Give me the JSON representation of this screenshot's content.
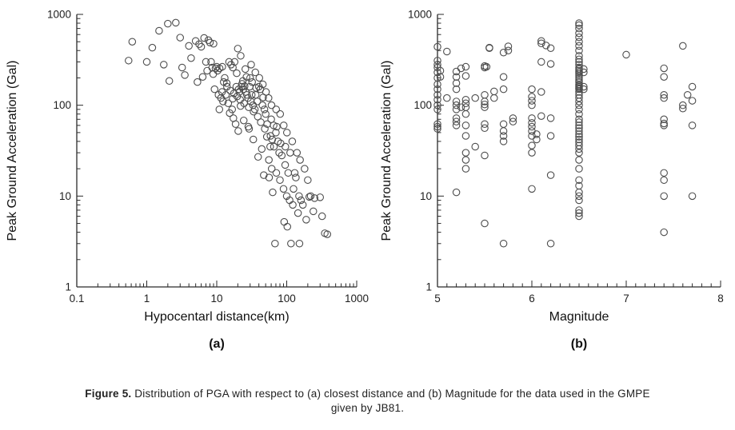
{
  "style": {
    "background": "#ffffff",
    "axis_color": "#2b2b2b",
    "point_color": "#4d4d4d"
  },
  "figure": {
    "caption_label": "Figure 5.",
    "caption_body": " Distribution of PGA with respect to (a) closest distance and (b) Magnitude for the data used in the GMPE given by JB81."
  },
  "chart_data": [
    {
      "type": "scatter",
      "name": "pga-vs-hypocentral-distance",
      "title": "",
      "xlabel": "Hypocentarl distance(km)",
      "ylabel": "Peak Ground Acceleration (Gal)",
      "sublabel": "(a)",
      "xscale": "log",
      "yscale": "log",
      "xlim": [
        0.1,
        1000
      ],
      "ylim": [
        1,
        1000
      ],
      "xticks": [
        0.1,
        1,
        10,
        100,
        1000
      ],
      "yticks": [
        1,
        10,
        100,
        1000
      ],
      "grid": false,
      "legend": "none",
      "marker": "open-circle",
      "points": [
        [
          0.55,
          310
        ],
        [
          0.62,
          500
        ],
        [
          1.0,
          300
        ],
        [
          1.2,
          430
        ],
        [
          1.5,
          660
        ],
        [
          1.75,
          280
        ],
        [
          2.0,
          790
        ],
        [
          2.1,
          185
        ],
        [
          2.6,
          810
        ],
        [
          3.0,
          555
        ],
        [
          3.2,
          260
        ],
        [
          3.5,
          215
        ],
        [
          4.0,
          450
        ],
        [
          4.3,
          330
        ],
        [
          5.0,
          510
        ],
        [
          5.3,
          180
        ],
        [
          5.6,
          470
        ],
        [
          6.0,
          440
        ],
        [
          6.3,
          205
        ],
        [
          6.6,
          550
        ],
        [
          7.0,
          300
        ],
        [
          7.3,
          240
        ],
        [
          7.6,
          520
        ],
        [
          8.0,
          490
        ],
        [
          8.3,
          300
        ],
        [
          8.6,
          260
        ],
        [
          8.9,
          220
        ],
        [
          9.0,
          475
        ],
        [
          9.3,
          150
        ],
        [
          9.6,
          255
        ],
        [
          10.0,
          265
        ],
        [
          10.3,
          240
        ],
        [
          10.6,
          130
        ],
        [
          10.9,
          90
        ],
        [
          11.0,
          255
        ],
        [
          11.5,
          120
        ],
        [
          11.9,
          140
        ],
        [
          12.0,
          265
        ],
        [
          12.3,
          110
        ],
        [
          12.6,
          180
        ],
        [
          13.0,
          200
        ],
        [
          13.5,
          130
        ],
        [
          13.9,
          175
        ],
        [
          14.0,
          160
        ],
        [
          14.6,
          105
        ],
        [
          15.0,
          300
        ],
        [
          15.3,
          82
        ],
        [
          15.6,
          145
        ],
        [
          16.0,
          280
        ],
        [
          16.6,
          90
        ],
        [
          16.9,
          118
        ],
        [
          17.0,
          260
        ],
        [
          17.3,
          72
        ],
        [
          17.6,
          135
        ],
        [
          18.0,
          300
        ],
        [
          18.6,
          62
        ],
        [
          19.0,
          160
        ],
        [
          19.3,
          225
        ],
        [
          19.6,
          125
        ],
        [
          20.0,
          420
        ],
        [
          20.3,
          52
        ],
        [
          20.6,
          150
        ],
        [
          21.0,
          140
        ],
        [
          21.6,
          115
        ],
        [
          21.9,
          98
        ],
        [
          22.0,
          350
        ],
        [
          22.6,
          160
        ],
        [
          23.0,
          172
        ],
        [
          23.6,
          185
        ],
        [
          24.0,
          150
        ],
        [
          24.3,
          68
        ],
        [
          24.6,
          105
        ],
        [
          25.0,
          162
        ],
        [
          25.6,
          250
        ],
        [
          26.0,
          140
        ],
        [
          26.6,
          205
        ],
        [
          27.0,
          130
        ],
        [
          28.0,
          120
        ],
        [
          28.3,
          58
        ],
        [
          28.6,
          95
        ],
        [
          29.0,
          55
        ],
        [
          29.6,
          160
        ],
        [
          30.0,
          200
        ],
        [
          30.6,
          110
        ],
        [
          31.0,
          280
        ],
        [
          31.6,
          130
        ],
        [
          32.0,
          180
        ],
        [
          33.0,
          100
        ],
        [
          33.3,
          42
        ],
        [
          33.6,
          85
        ],
        [
          35.0,
          90
        ],
        [
          35.6,
          230
        ],
        [
          36.0,
          130
        ],
        [
          36.6,
          155
        ],
        [
          38.0,
          110
        ],
        [
          38.6,
          75
        ],
        [
          39.0,
          27
        ],
        [
          40.0,
          160
        ],
        [
          40.6,
          200
        ],
        [
          42.0,
          150
        ],
        [
          42.6,
          65
        ],
        [
          44.0,
          33
        ],
        [
          45.0,
          100
        ],
        [
          45.6,
          170
        ],
        [
          46.0,
          122
        ],
        [
          47.0,
          17
        ],
        [
          48.0,
          90
        ],
        [
          48.6,
          55
        ],
        [
          50.0,
          80
        ],
        [
          50.6,
          140
        ],
        [
          52.0,
          45
        ],
        [
          52.6,
          62
        ],
        [
          55.0,
          120
        ],
        [
          55.6,
          25
        ],
        [
          56.0,
          16
        ],
        [
          58.0,
          35
        ],
        [
          58.6,
          46
        ],
        [
          60.0,
          70
        ],
        [
          60.6,
          100
        ],
        [
          61.0,
          20
        ],
        [
          62.0,
          42
        ],
        [
          63.0,
          11
        ],
        [
          65.0,
          60
        ],
        [
          65.6,
          35
        ],
        [
          68.0,
          3.0
        ],
        [
          70.0,
          50
        ],
        [
          70.6,
          90
        ],
        [
          71.0,
          18
        ],
        [
          72.0,
          58
        ],
        [
          75.0,
          40
        ],
        [
          78.0,
          30
        ],
        [
          80.0,
          15
        ],
        [
          80.6,
          80
        ],
        [
          82.0,
          38
        ],
        [
          85.0,
          28
        ],
        [
          90.0,
          12
        ],
        [
          90.6,
          60
        ],
        [
          92.0,
          5.2
        ],
        [
          95.0,
          22
        ],
        [
          95.6,
          35
        ],
        [
          100.0,
          10
        ],
        [
          100.6,
          50
        ],
        [
          102.0,
          4.6
        ],
        [
          105.0,
          18
        ],
        [
          110.0,
          9.0
        ],
        [
          112.0,
          30
        ],
        [
          115.0,
          3.0
        ],
        [
          120.0,
          40
        ],
        [
          122.0,
          8.0
        ],
        [
          125.0,
          12
        ],
        [
          130.0,
          18
        ],
        [
          135.0,
          16
        ],
        [
          140.0,
          30
        ],
        [
          145.0,
          6.5
        ],
        [
          150.0,
          10
        ],
        [
          152.0,
          3.0
        ],
        [
          155.0,
          25
        ],
        [
          160.0,
          9.0
        ],
        [
          170.0,
          8.0
        ],
        [
          180.0,
          20
        ],
        [
          190.0,
          5.5
        ],
        [
          200.0,
          15
        ],
        [
          210.0,
          9.8
        ],
        [
          220.0,
          10
        ],
        [
          240.0,
          6.8
        ],
        [
          250.0,
          9.5
        ],
        [
          300.0,
          9.7
        ],
        [
          320.0,
          6.0
        ],
        [
          350.0,
          3.9
        ],
        [
          380.0,
          3.8
        ]
      ]
    },
    {
      "type": "scatter",
      "name": "pga-vs-magnitude",
      "title": "",
      "xlabel": "Magnitude",
      "ylabel": "Peak Ground Acceleration (Gal)",
      "sublabel": "(b)",
      "xscale": "linear",
      "yscale": "log",
      "xlim": [
        5,
        8
      ],
      "ylim": [
        1,
        1000
      ],
      "xticks": [
        5,
        6,
        7,
        8
      ],
      "yticks": [
        1,
        10,
        100,
        1000
      ],
      "xminor": 0.1,
      "grid": false,
      "legend": "none",
      "marker": "open-circle",
      "points": [
        [
          5.0,
          55
        ],
        [
          5.0,
          58
        ],
        [
          5.0,
          62
        ],
        [
          5.0,
          90
        ],
        [
          5.0,
          100
        ],
        [
          5.0,
          115
        ],
        [
          5.0,
          130
        ],
        [
          5.0,
          150
        ],
        [
          5.0,
          170
        ],
        [
          5.0,
          200
        ],
        [
          5.0,
          230
        ],
        [
          5.0,
          260
        ],
        [
          5.0,
          280
        ],
        [
          5.0,
          310
        ],
        [
          5.0,
          440
        ],
        [
          5.03,
          240
        ],
        [
          5.03,
          205
        ],
        [
          5.1,
          120
        ],
        [
          5.1,
          390
        ],
        [
          5.2,
          11
        ],
        [
          5.2,
          60
        ],
        [
          5.2,
          66
        ],
        [
          5.2,
          72
        ],
        [
          5.2,
          90
        ],
        [
          5.2,
          100
        ],
        [
          5.2,
          110
        ],
        [
          5.2,
          150
        ],
        [
          5.2,
          175
        ],
        [
          5.2,
          205
        ],
        [
          5.2,
          235
        ],
        [
          5.25,
          255
        ],
        [
          5.25,
          95
        ],
        [
          5.3,
          20
        ],
        [
          5.3,
          25
        ],
        [
          5.3,
          30
        ],
        [
          5.3,
          46
        ],
        [
          5.3,
          60
        ],
        [
          5.3,
          80
        ],
        [
          5.3,
          95
        ],
        [
          5.3,
          105
        ],
        [
          5.3,
          115
        ],
        [
          5.3,
          210
        ],
        [
          5.3,
          265
        ],
        [
          5.4,
          35
        ],
        [
          5.4,
          120
        ],
        [
          5.5,
          5
        ],
        [
          5.5,
          28
        ],
        [
          5.5,
          56
        ],
        [
          5.5,
          62
        ],
        [
          5.5,
          95
        ],
        [
          5.5,
          102
        ],
        [
          5.5,
          110
        ],
        [
          5.5,
          130
        ],
        [
          5.5,
          260
        ],
        [
          5.5,
          270
        ],
        [
          5.52,
          265
        ],
        [
          5.55,
          425
        ],
        [
          5.55,
          430
        ],
        [
          5.6,
          120
        ],
        [
          5.6,
          142
        ],
        [
          5.7,
          3
        ],
        [
          5.7,
          40
        ],
        [
          5.7,
          46
        ],
        [
          5.7,
          52
        ],
        [
          5.7,
          62
        ],
        [
          5.7,
          150
        ],
        [
          5.7,
          205
        ],
        [
          5.7,
          380
        ],
        [
          5.75,
          400
        ],
        [
          5.75,
          445
        ],
        [
          5.8,
          66
        ],
        [
          5.8,
          72
        ],
        [
          6.0,
          12
        ],
        [
          6.0,
          30
        ],
        [
          6.0,
          36
        ],
        [
          6.0,
          46
        ],
        [
          6.0,
          52
        ],
        [
          6.0,
          58
        ],
        [
          6.0,
          64
        ],
        [
          6.0,
          72
        ],
        [
          6.0,
          100
        ],
        [
          6.0,
          112
        ],
        [
          6.0,
          124
        ],
        [
          6.0,
          150
        ],
        [
          6.05,
          42
        ],
        [
          6.05,
          48
        ],
        [
          6.1,
          76
        ],
        [
          6.1,
          140
        ],
        [
          6.1,
          300
        ],
        [
          6.1,
          480
        ],
        [
          6.1,
          510
        ],
        [
          6.15,
          455
        ],
        [
          6.2,
          3
        ],
        [
          6.2,
          17
        ],
        [
          6.2,
          46
        ],
        [
          6.2,
          72
        ],
        [
          6.2,
          285
        ],
        [
          6.2,
          425
        ],
        [
          6.5,
          6
        ],
        [
          6.5,
          6.5
        ],
        [
          6.5,
          7
        ],
        [
          6.5,
          9
        ],
        [
          6.5,
          10
        ],
        [
          6.5,
          11
        ],
        [
          6.5,
          13
        ],
        [
          6.5,
          15
        ],
        [
          6.5,
          20
        ],
        [
          6.5,
          25
        ],
        [
          6.5,
          30
        ],
        [
          6.5,
          33
        ],
        [
          6.5,
          36
        ],
        [
          6.5,
          39
        ],
        [
          6.5,
          42
        ],
        [
          6.5,
          45
        ],
        [
          6.5,
          48
        ],
        [
          6.5,
          52
        ],
        [
          6.5,
          56
        ],
        [
          6.5,
          60
        ],
        [
          6.5,
          65
        ],
        [
          6.5,
          70
        ],
        [
          6.5,
          80
        ],
        [
          6.5,
          90
        ],
        [
          6.5,
          100
        ],
        [
          6.5,
          110
        ],
        [
          6.5,
          120
        ],
        [
          6.5,
          130
        ],
        [
          6.5,
          140
        ],
        [
          6.5,
          150
        ],
        [
          6.5,
          155
        ],
        [
          6.5,
          160
        ],
        [
          6.5,
          165
        ],
        [
          6.5,
          170
        ],
        [
          6.5,
          180
        ],
        [
          6.5,
          190
        ],
        [
          6.5,
          200
        ],
        [
          6.5,
          210
        ],
        [
          6.5,
          220
        ],
        [
          6.5,
          230
        ],
        [
          6.5,
          240
        ],
        [
          6.5,
          250
        ],
        [
          6.5,
          260
        ],
        [
          6.5,
          280
        ],
        [
          6.5,
          300
        ],
        [
          6.5,
          320
        ],
        [
          6.5,
          350
        ],
        [
          6.5,
          400
        ],
        [
          6.5,
          450
        ],
        [
          6.5,
          500
        ],
        [
          6.5,
          560
        ],
        [
          6.5,
          620
        ],
        [
          6.5,
          700
        ],
        [
          6.5,
          760
        ],
        [
          6.5,
          800
        ],
        [
          6.55,
          150
        ],
        [
          6.55,
          160
        ],
        [
          6.55,
          230
        ],
        [
          6.55,
          250
        ],
        [
          7.0,
          360
        ],
        [
          7.4,
          4
        ],
        [
          7.4,
          10
        ],
        [
          7.4,
          15
        ],
        [
          7.4,
          18
        ],
        [
          7.4,
          60
        ],
        [
          7.4,
          63
        ],
        [
          7.4,
          70
        ],
        [
          7.4,
          120
        ],
        [
          7.4,
          130
        ],
        [
          7.4,
          205
        ],
        [
          7.4,
          255
        ],
        [
          7.6,
          92
        ],
        [
          7.6,
          100
        ],
        [
          7.6,
          450
        ],
        [
          7.65,
          130
        ],
        [
          7.7,
          10
        ],
        [
          7.7,
          60
        ],
        [
          7.7,
          112
        ],
        [
          7.7,
          160
        ]
      ]
    }
  ]
}
